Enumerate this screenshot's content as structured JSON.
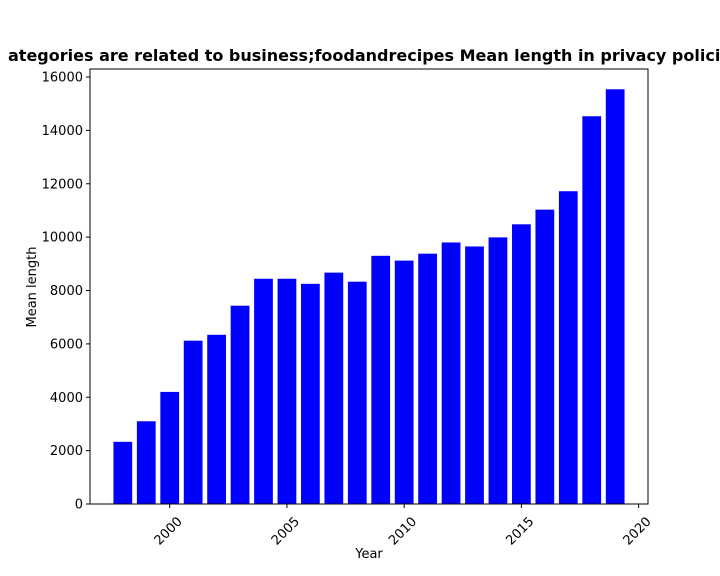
{
  "chart_data": {
    "type": "bar",
    "title": "ategories are related to business;foodandrecipes Mean length in privacy policie",
    "xlabel": "Year",
    "ylabel": "Mean length",
    "categories": [
      1998,
      1999,
      2000,
      2001,
      2002,
      2003,
      2004,
      2005,
      2006,
      2007,
      2008,
      2009,
      2010,
      2011,
      2012,
      2013,
      2014,
      2015,
      2016,
      2017,
      2018,
      2019
    ],
    "values": [
      2330,
      3100,
      4200,
      6120,
      6340,
      7430,
      8440,
      8440,
      8250,
      8670,
      8330,
      9300,
      9120,
      9380,
      9800,
      9650,
      9990,
      10480,
      11030,
      11720,
      14530,
      15540
    ],
    "xlim": [
      1996.6,
      2020.4
    ],
    "ylim": [
      0,
      16300
    ],
    "xticks": [
      "2000",
      "2005",
      "2010",
      "2015",
      "2020"
    ],
    "yticks": [
      "0",
      "2000",
      "4000",
      "6000",
      "8000",
      "10000",
      "12000",
      "14000",
      "16000"
    ],
    "bar_color": "#0000ff",
    "grid": false
  }
}
